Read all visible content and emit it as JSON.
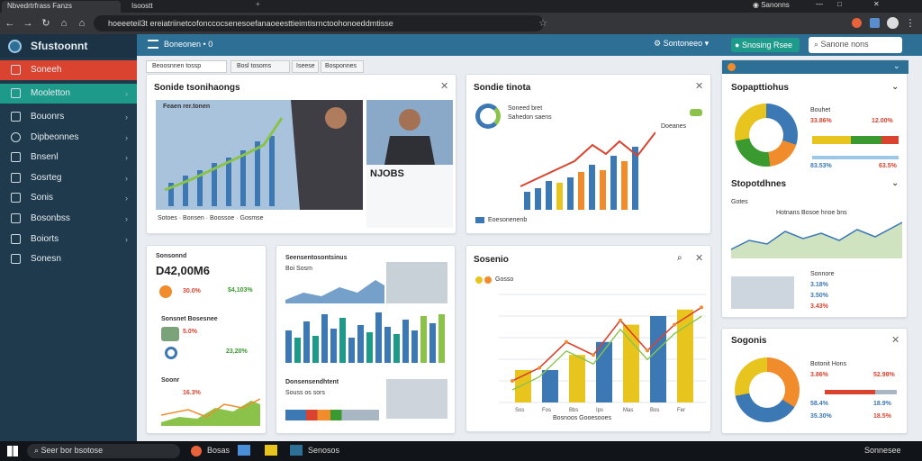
{
  "tabs": [
    {
      "label": "Nbvedrtrfrass Fanzs"
    },
    {
      "label": "Isoostt"
    }
  ],
  "browser": {
    "url": "hoeeeteil3t ereiatriinetcofonccocsenesoefanaoeesttieimtisrnctoohonoeddmtisse",
    "profile": "Sanonns"
  },
  "sidebar": {
    "brand": "Sfustoonnt",
    "items": [
      {
        "label": "Soneeh",
        "state": "active-red"
      },
      {
        "label": "Mooletton",
        "state": "active-teal"
      },
      {
        "label": "Bouonrs",
        "state": ""
      },
      {
        "label": "Dipbeonnes",
        "state": ""
      },
      {
        "label": "Bnsenl",
        "state": ""
      },
      {
        "label": "Sosrteg",
        "state": ""
      },
      {
        "label": "Sonis",
        "state": ""
      },
      {
        "label": "Bosonbss",
        "state": ""
      },
      {
        "label": "Boiorts",
        "state": ""
      },
      {
        "label": "Sonesn",
        "state": ""
      }
    ]
  },
  "header": {
    "breadcrumb": "Boneonen • 0",
    "btn1": "Sontoneeo",
    "btn2": "Snosing Rsee",
    "search_placeholder": "Sanone nons"
  },
  "subtabs": [
    "Beoosnnen tossp",
    "Bosl tosoms",
    "Iseese",
    "Bosponnes"
  ],
  "cards": {
    "c1": {
      "title": "Sonide tsonihaongs",
      "panel_title": "Feaen rer.tonen",
      "caption": "NJOBS",
      "c1": "Sotoes",
      "c2": "Bonsen",
      "c3": "Boossoe",
      "c4": "Gosmse"
    },
    "c2": {
      "title": "Sondie tinota",
      "l1": "Soneed bret",
      "l2": "Sahedon saens",
      "l3": "Doeanes",
      "footer": "Eoesonenenb"
    },
    "c3": {
      "title": "Sopapttiohus",
      "v1": "33.86%",
      "v2": "12.00%",
      "v3": "83.53%",
      "v4": "63.5%",
      "t1": "Bouhet"
    },
    "c4": {
      "title": "Stopotdhnes",
      "sub": "Gotes",
      "sub2": "Hotnans Bosoe hnoe bns",
      "t1": "Sonnore",
      "v1": "3.18%",
      "v2": "3.50%",
      "v3": "3.43%"
    },
    "c5": {
      "title": "Sonsonnd",
      "value": "D42,00M6",
      "p1": "30.0%",
      "v1": "$4,103%",
      "p2": "5.0%",
      "v2": "23,20%",
      "p3": "16.3%",
      "sub1": "Sonsnet Bosesnee",
      "sub2": "Soonr"
    },
    "c6": {
      "title": "Seensentosontsinus",
      "sub": "Boi Sosm",
      "sub2": "Donsensendhtent",
      "sub3": "Souss os sors"
    },
    "c7": {
      "title": "Sosenio",
      "legend": "Gosso",
      "footer": "Bosnoos Gooesooes"
    },
    "c8": {
      "title": "Sogonis",
      "l1": "Botonit Hons",
      "v1": "3.86%",
      "v2": "52.98%",
      "v3": "58.4%",
      "v4": "18.9%",
      "v5": "35.30%",
      "v6": "18.5%"
    }
  },
  "taskbar": {
    "search": "Seer bor bsotose",
    "app1": "Bosas",
    "app2": "Senosos",
    "clock": "Sonnesee"
  },
  "chart_data": {
    "type": "bar",
    "series": [
      {
        "name": "",
        "values": [
          1.5,
          1.5,
          2.2,
          2.8,
          3.6,
          4.0,
          4.3
        ]
      }
    ],
    "line": [
      1.0,
      1.6,
      2.8,
      2.2,
      3.8,
      2.4,
      3.6,
      4.4
    ],
    "ylim": [
      0,
      5
    ],
    "categories": [
      "Sos",
      "Fos",
      "Bbs",
      "Ips",
      "Mas",
      "Bos",
      "Fer"
    ]
  },
  "colors": {
    "accent": "#2e6f96",
    "sidebar": "#1f3a4d",
    "red": "#d9432f",
    "teal": "#1e9a8a",
    "green": "#3a9a2f",
    "blue": "#3b78b4",
    "yellow": "#e8c41e",
    "orange": "#f08c2b"
  }
}
